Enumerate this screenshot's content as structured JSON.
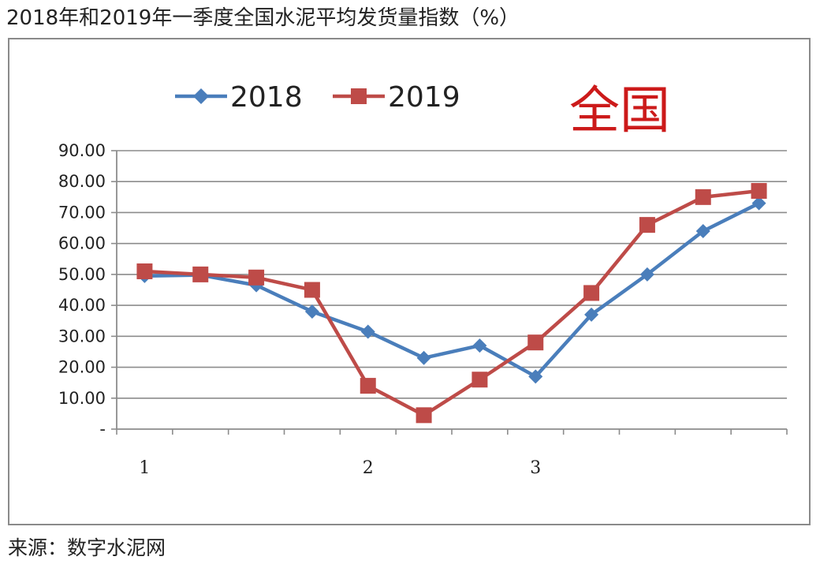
{
  "title": "2018年和2019年一季度全国水泥平均发货量指数（%）",
  "source": "来源：数字水泥网",
  "region_label": "全国",
  "chart_data": {
    "type": "line",
    "title": "",
    "xlabel": "",
    "ylabel": "",
    "ylim": [
      0,
      90
    ],
    "yticks": [
      "-",
      "10.00",
      "20.00",
      "30.00",
      "40.00",
      "50.00",
      "60.00",
      "70.00",
      "80.00",
      "90.00"
    ],
    "ytick_values": [
      0,
      10,
      20,
      30,
      40,
      50,
      60,
      70,
      80,
      90
    ],
    "x": [
      1,
      2,
      3,
      4,
      5,
      6,
      7,
      8,
      9,
      10,
      11,
      12
    ],
    "x_tick_labels": [
      {
        "text": "1",
        "index": 1
      },
      {
        "text": "2",
        "index": 5
      },
      {
        "text": "3",
        "index": 8
      }
    ],
    "grid": true,
    "legend_position": "top",
    "series": [
      {
        "name": "2018",
        "color": "#4a7ebb",
        "marker": "diamond",
        "values": [
          49.5,
          49.8,
          46.5,
          38.0,
          31.5,
          23.0,
          27.0,
          17.0,
          37.0,
          50.0,
          64.0,
          73.0
        ]
      },
      {
        "name": "2019",
        "color": "#be4b48",
        "marker": "square",
        "values": [
          51.0,
          50.0,
          49.0,
          45.0,
          14.0,
          4.5,
          16.0,
          28.0,
          44.0,
          66.0,
          75.0,
          77.0
        ]
      }
    ]
  }
}
